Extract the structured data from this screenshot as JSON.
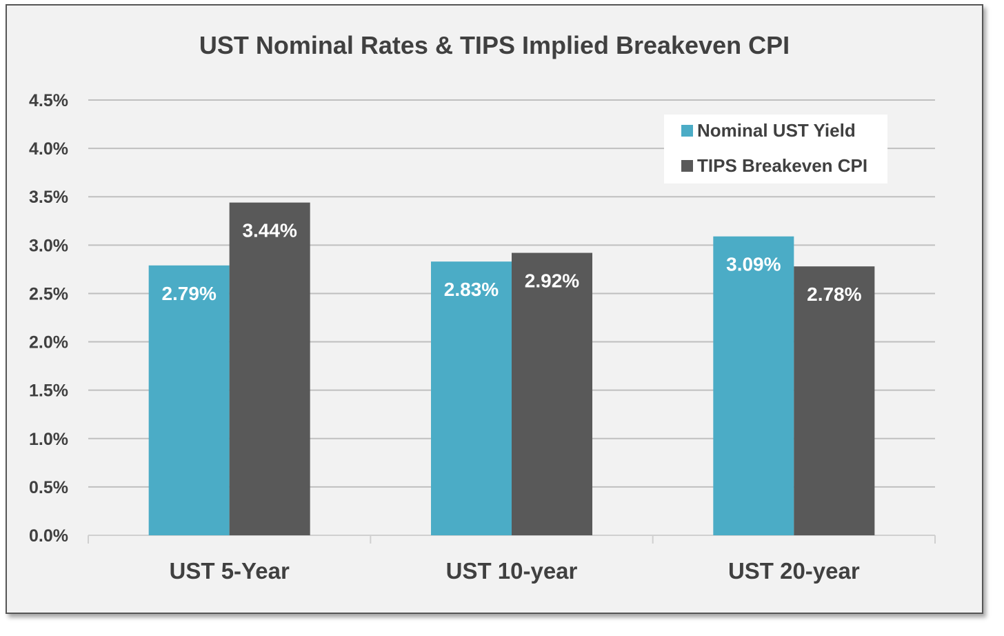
{
  "chart_data": {
    "type": "bar",
    "title": "UST Nominal Rates & TIPS Implied Breakeven CPI",
    "xlabel": "",
    "ylabel": "",
    "categories": [
      "UST 5-Year",
      "UST 10-year",
      "UST 20-year"
    ],
    "series": [
      {
        "name": "Nominal UST Yield",
        "color": "#4bacc6",
        "values": [
          2.79,
          2.83,
          3.09
        ],
        "labels": [
          "2.79%",
          "2.83%",
          "3.09%"
        ]
      },
      {
        "name": "TIPS Breakeven CPI",
        "color": "#595959",
        "values": [
          3.44,
          2.92,
          2.78
        ],
        "labels": [
          "3.44%",
          "2.92%",
          "2.78%"
        ]
      }
    ],
    "ylim": [
      0,
      4.5
    ],
    "yticks": [
      0,
      0.5,
      1.0,
      1.5,
      2.0,
      2.5,
      3.0,
      3.5,
      4.0,
      4.5
    ],
    "ytick_labels": [
      "0.0%",
      "0.5%",
      "1.0%",
      "1.5%",
      "2.0%",
      "2.5%",
      "3.0%",
      "3.5%",
      "4.0%",
      "4.5%"
    ],
    "grid": true,
    "legend_position": "top-right"
  }
}
